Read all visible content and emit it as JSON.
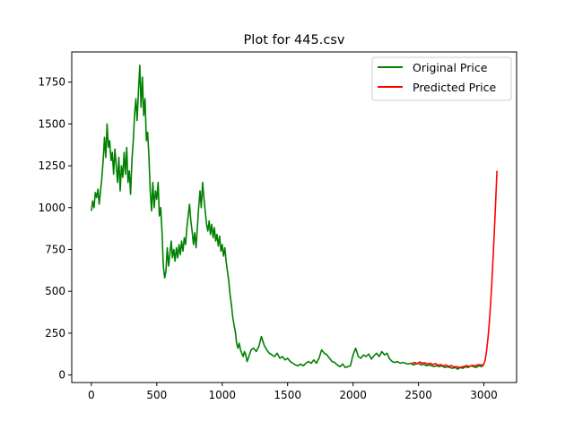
{
  "chart_data": {
    "type": "line",
    "title": "Plot for 445.csv",
    "xlabel": "",
    "ylabel": "",
    "xlim": [
      -150,
      3250
    ],
    "ylim": [
      -45,
      1930
    ],
    "grid": false,
    "legend_position": "top-right",
    "x_ticks": [
      0,
      500,
      1000,
      1500,
      2000,
      2500,
      3000
    ],
    "y_ticks": [
      0,
      250,
      500,
      750,
      1000,
      1250,
      1500,
      1750
    ],
    "series": [
      {
        "name": "Original Price",
        "color": "#008000",
        "points": [
          [
            0,
            980
          ],
          [
            10,
            1040
          ],
          [
            20,
            1000
          ],
          [
            30,
            1090
          ],
          [
            40,
            1060
          ],
          [
            50,
            1110
          ],
          [
            60,
            1020
          ],
          [
            70,
            1100
          ],
          [
            80,
            1180
          ],
          [
            90,
            1280
          ],
          [
            100,
            1420
          ],
          [
            110,
            1300
          ],
          [
            120,
            1500
          ],
          [
            130,
            1360
          ],
          [
            140,
            1400
          ],
          [
            150,
            1280
          ],
          [
            160,
            1330
          ],
          [
            170,
            1200
          ],
          [
            180,
            1350
          ],
          [
            190,
            1250
          ],
          [
            200,
            1150
          ],
          [
            210,
            1300
          ],
          [
            220,
            1100
          ],
          [
            230,
            1250
          ],
          [
            240,
            1180
          ],
          [
            250,
            1330
          ],
          [
            260,
            1200
          ],
          [
            270,
            1360
          ],
          [
            280,
            1150
          ],
          [
            290,
            1220
          ],
          [
            300,
            1080
          ],
          [
            310,
            1280
          ],
          [
            320,
            1400
          ],
          [
            330,
            1550
          ],
          [
            340,
            1650
          ],
          [
            350,
            1520
          ],
          [
            360,
            1700
          ],
          [
            370,
            1850
          ],
          [
            380,
            1600
          ],
          [
            390,
            1780
          ],
          [
            400,
            1550
          ],
          [
            410,
            1650
          ],
          [
            420,
            1400
          ],
          [
            430,
            1450
          ],
          [
            440,
            1300
          ],
          [
            450,
            1100
          ],
          [
            460,
            980
          ],
          [
            470,
            1150
          ],
          [
            480,
            1000
          ],
          [
            490,
            1100
          ],
          [
            500,
            1050
          ],
          [
            510,
            1150
          ],
          [
            520,
            950
          ],
          [
            530,
            1000
          ],
          [
            540,
            850
          ],
          [
            550,
            650
          ],
          [
            560,
            580
          ],
          [
            570,
            620
          ],
          [
            580,
            760
          ],
          [
            590,
            650
          ],
          [
            600,
            720
          ],
          [
            610,
            800
          ],
          [
            620,
            700
          ],
          [
            630,
            750
          ],
          [
            640,
            680
          ],
          [
            650,
            760
          ],
          [
            660,
            700
          ],
          [
            670,
            780
          ],
          [
            680,
            720
          ],
          [
            690,
            800
          ],
          [
            700,
            740
          ],
          [
            710,
            820
          ],
          [
            720,
            780
          ],
          [
            730,
            880
          ],
          [
            740,
            950
          ],
          [
            750,
            1020
          ],
          [
            760,
            920
          ],
          [
            770,
            860
          ],
          [
            780,
            780
          ],
          [
            790,
            850
          ],
          [
            800,
            760
          ],
          [
            810,
            880
          ],
          [
            820,
            1000
          ],
          [
            830,
            1100
          ],
          [
            840,
            1000
          ],
          [
            850,
            1150
          ],
          [
            860,
            1060
          ],
          [
            870,
            980
          ],
          [
            880,
            900
          ],
          [
            890,
            860
          ],
          [
            900,
            920
          ],
          [
            910,
            840
          ],
          [
            920,
            900
          ],
          [
            930,
            820
          ],
          [
            940,
            880
          ],
          [
            950,
            800
          ],
          [
            960,
            840
          ],
          [
            970,
            770
          ],
          [
            980,
            830
          ],
          [
            990,
            740
          ],
          [
            1000,
            780
          ],
          [
            1010,
            710
          ],
          [
            1020,
            760
          ],
          [
            1030,
            680
          ],
          [
            1040,
            620
          ],
          [
            1050,
            560
          ],
          [
            1060,
            480
          ],
          [
            1070,
            420
          ],
          [
            1080,
            350
          ],
          [
            1090,
            300
          ],
          [
            1100,
            260
          ],
          [
            1110,
            190
          ],
          [
            1120,
            160
          ],
          [
            1130,
            190
          ],
          [
            1140,
            150
          ],
          [
            1150,
            130
          ],
          [
            1160,
            110
          ],
          [
            1170,
            140
          ],
          [
            1180,
            120
          ],
          [
            1190,
            80
          ],
          [
            1200,
            100
          ],
          [
            1220,
            150
          ],
          [
            1240,
            160
          ],
          [
            1260,
            140
          ],
          [
            1280,
            170
          ],
          [
            1300,
            230
          ],
          [
            1320,
            180
          ],
          [
            1340,
            150
          ],
          [
            1360,
            130
          ],
          [
            1380,
            120
          ],
          [
            1400,
            110
          ],
          [
            1420,
            130
          ],
          [
            1440,
            100
          ],
          [
            1460,
            110
          ],
          [
            1480,
            90
          ],
          [
            1500,
            100
          ],
          [
            1520,
            80
          ],
          [
            1540,
            70
          ],
          [
            1560,
            60
          ],
          [
            1580,
            55
          ],
          [
            1600,
            65
          ],
          [
            1620,
            55
          ],
          [
            1640,
            70
          ],
          [
            1660,
            80
          ],
          [
            1680,
            70
          ],
          [
            1700,
            90
          ],
          [
            1720,
            70
          ],
          [
            1740,
            100
          ],
          [
            1760,
            150
          ],
          [
            1780,
            130
          ],
          [
            1800,
            120
          ],
          [
            1820,
            100
          ],
          [
            1840,
            80
          ],
          [
            1860,
            75
          ],
          [
            1880,
            60
          ],
          [
            1900,
            50
          ],
          [
            1920,
            65
          ],
          [
            1940,
            45
          ],
          [
            1960,
            50
          ],
          [
            1980,
            55
          ],
          [
            2000,
            120
          ],
          [
            2020,
            160
          ],
          [
            2040,
            110
          ],
          [
            2060,
            100
          ],
          [
            2080,
            120
          ],
          [
            2100,
            110
          ],
          [
            2120,
            125
          ],
          [
            2140,
            95
          ],
          [
            2160,
            115
          ],
          [
            2180,
            130
          ],
          [
            2200,
            110
          ],
          [
            2220,
            140
          ],
          [
            2240,
            120
          ],
          [
            2260,
            130
          ],
          [
            2280,
            95
          ],
          [
            2300,
            80
          ],
          [
            2320,
            75
          ],
          [
            2340,
            80
          ],
          [
            2360,
            70
          ],
          [
            2380,
            75
          ],
          [
            2400,
            70
          ],
          [
            2420,
            65
          ],
          [
            2440,
            70
          ],
          [
            2460,
            60
          ],
          [
            2480,
            65
          ],
          [
            2500,
            70
          ],
          [
            2520,
            60
          ],
          [
            2540,
            65
          ],
          [
            2560,
            55
          ],
          [
            2580,
            60
          ],
          [
            2600,
            55
          ],
          [
            2620,
            50
          ],
          [
            2640,
            55
          ],
          [
            2660,
            50
          ],
          [
            2680,
            55
          ],
          [
            2700,
            45
          ],
          [
            2720,
            50
          ],
          [
            2740,
            45
          ],
          [
            2760,
            40
          ],
          [
            2780,
            45
          ],
          [
            2800,
            35
          ],
          [
            2820,
            45
          ],
          [
            2840,
            40
          ],
          [
            2860,
            50
          ],
          [
            2880,
            45
          ],
          [
            2900,
            55
          ],
          [
            2920,
            50
          ],
          [
            2940,
            45
          ],
          [
            2960,
            55
          ],
          [
            2980,
            50
          ],
          [
            3000,
            60
          ]
        ]
      },
      {
        "name": "Predicted Price",
        "color": "#ff0000",
        "points": [
          [
            2450,
            70
          ],
          [
            2470,
            75
          ],
          [
            2490,
            68
          ],
          [
            2510,
            78
          ],
          [
            2530,
            70
          ],
          [
            2550,
            72
          ],
          [
            2570,
            65
          ],
          [
            2590,
            70
          ],
          [
            2610,
            62
          ],
          [
            2630,
            68
          ],
          [
            2650,
            58
          ],
          [
            2670,
            62
          ],
          [
            2690,
            55
          ],
          [
            2710,
            60
          ],
          [
            2730,
            52
          ],
          [
            2750,
            56
          ],
          [
            2770,
            48
          ],
          [
            2790,
            50
          ],
          [
            2810,
            45
          ],
          [
            2830,
            48
          ],
          [
            2850,
            52
          ],
          [
            2870,
            56
          ],
          [
            2890,
            50
          ],
          [
            2910,
            58
          ],
          [
            2930,
            54
          ],
          [
            2950,
            60
          ],
          [
            2970,
            62
          ],
          [
            2990,
            58
          ],
          [
            3000,
            65
          ],
          [
            3010,
            90
          ],
          [
            3020,
            140
          ],
          [
            3030,
            210
          ],
          [
            3040,
            300
          ],
          [
            3050,
            410
          ],
          [
            3060,
            540
          ],
          [
            3070,
            690
          ],
          [
            3080,
            860
          ],
          [
            3090,
            1040
          ],
          [
            3095,
            1130
          ],
          [
            3100,
            1220
          ]
        ]
      }
    ]
  }
}
